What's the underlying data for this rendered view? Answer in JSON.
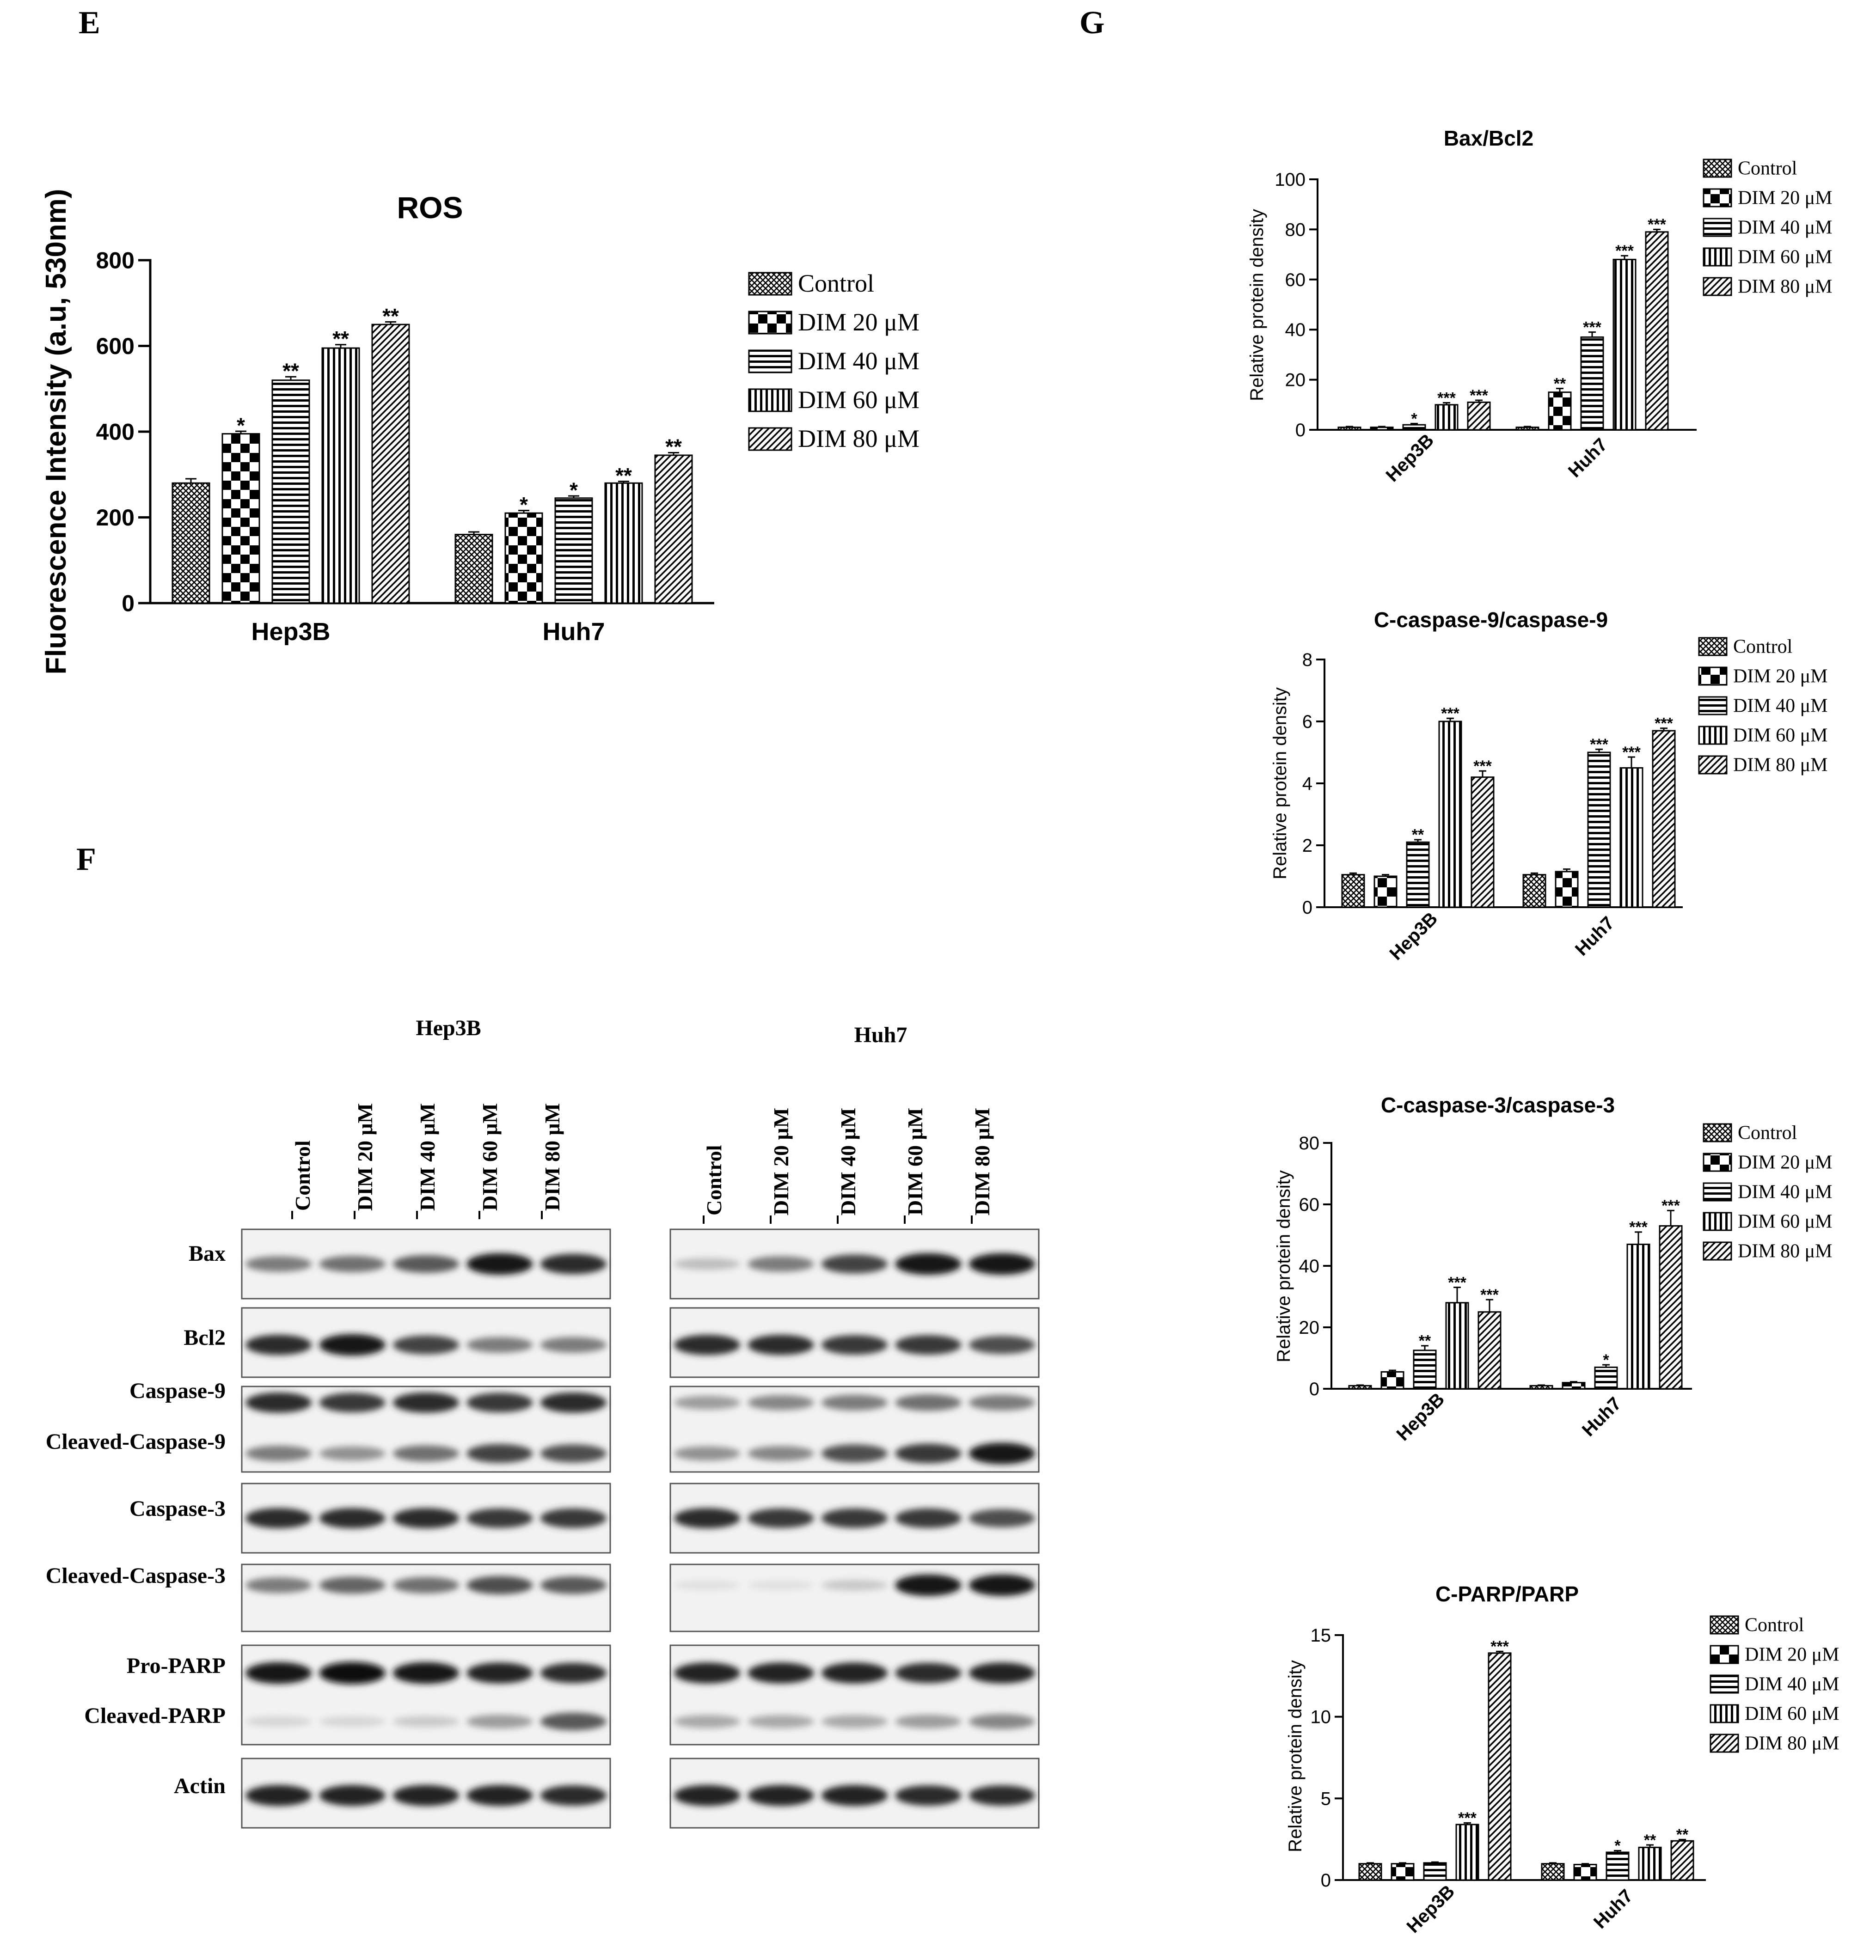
{
  "panels": {
    "e": "E",
    "f": "F",
    "g": "G"
  },
  "legend_labels": [
    "Control",
    "DIM 20 μM",
    "DIM 40 μM",
    "DIM 60 μM",
    "DIM 80 μM"
  ],
  "chart_data": [
    {
      "id": "ros",
      "type": "bar",
      "title": "ROS",
      "ylabel": "Fluorescence Intensity (a.u, 530nm)",
      "categories": [
        "Hep3B",
        "Huh7"
      ],
      "ylim": [
        0,
        800
      ],
      "yticks": [
        0,
        200,
        400,
        600,
        800
      ],
      "series": [
        {
          "name": "Control",
          "values": [
            280,
            160
          ],
          "errors": [
            10,
            6
          ],
          "stars": [
            "",
            ""
          ]
        },
        {
          "name": "DIM 20 μM",
          "values": [
            395,
            210
          ],
          "errors": [
            6,
            6
          ],
          "stars": [
            "*",
            "*"
          ]
        },
        {
          "name": "DIM 40 μM",
          "values": [
            520,
            245
          ],
          "errors": [
            8,
            5
          ],
          "stars": [
            "**",
            "*"
          ]
        },
        {
          "name": "DIM 60 μM",
          "values": [
            595,
            280
          ],
          "errors": [
            8,
            4
          ],
          "stars": [
            "**",
            "**"
          ]
        },
        {
          "name": "DIM 80 μM",
          "values": [
            650,
            345
          ],
          "errors": [
            6,
            6
          ],
          "stars": [
            "**",
            "**"
          ]
        }
      ]
    },
    {
      "id": "bax",
      "type": "bar",
      "title": "Bax/Bcl2",
      "ylabel": "Relative protein density",
      "categories": [
        "Hep3B",
        "Huh7"
      ],
      "ylim": [
        0,
        100
      ],
      "yticks": [
        0,
        20,
        40,
        60,
        80,
        100
      ],
      "series": [
        {
          "name": "Control",
          "values": [
            1,
            1
          ],
          "errors": [
            0.3,
            0.3
          ],
          "stars": [
            "",
            ""
          ]
        },
        {
          "name": "DIM 20 μM",
          "values": [
            1,
            15
          ],
          "errors": [
            0.3,
            1.5
          ],
          "stars": [
            "",
            "**"
          ]
        },
        {
          "name": "DIM 40 μM",
          "values": [
            2,
            37
          ],
          "errors": [
            0.5,
            2
          ],
          "stars": [
            "*",
            "***"
          ]
        },
        {
          "name": "DIM 60 μM",
          "values": [
            10,
            68
          ],
          "errors": [
            0.8,
            1.5
          ],
          "stars": [
            "***",
            "***"
          ]
        },
        {
          "name": "DIM 80 μM",
          "values": [
            11,
            79
          ],
          "errors": [
            0.8,
            1
          ],
          "stars": [
            "***",
            "***"
          ]
        }
      ]
    },
    {
      "id": "casp9",
      "type": "bar",
      "title": "C-caspase-9/caspase-9",
      "ylabel": "Relative protein density",
      "categories": [
        "Hep3B",
        "Huh7"
      ],
      "ylim": [
        0,
        8
      ],
      "yticks": [
        0,
        2,
        4,
        6,
        8
      ],
      "series": [
        {
          "name": "Control",
          "values": [
            1.05,
            1.05
          ],
          "errors": [
            0.05,
            0.05
          ],
          "stars": [
            "",
            ""
          ]
        },
        {
          "name": "DIM 20 μM",
          "values": [
            1.0,
            1.15
          ],
          "errors": [
            0.05,
            0.08
          ],
          "stars": [
            "",
            ""
          ]
        },
        {
          "name": "DIM 40 μM",
          "values": [
            2.1,
            5.0
          ],
          "errors": [
            0.08,
            0.1
          ],
          "stars": [
            "**",
            "***"
          ]
        },
        {
          "name": "DIM 60 μM",
          "values": [
            6.0,
            4.5
          ],
          "errors": [
            0.1,
            0.35
          ],
          "stars": [
            "***",
            "***"
          ]
        },
        {
          "name": "DIM 80 μM",
          "values": [
            4.2,
            5.7
          ],
          "errors": [
            0.2,
            0.08
          ],
          "stars": [
            "***",
            "***"
          ]
        }
      ]
    },
    {
      "id": "casp3",
      "type": "bar",
      "title": "C-caspase-3/caspase-3",
      "ylabel": "Relative protein density",
      "categories": [
        "Hep3B",
        "Huh7"
      ],
      "ylim": [
        0,
        80
      ],
      "yticks": [
        0,
        20,
        40,
        60,
        80
      ],
      "series": [
        {
          "name": "Control",
          "values": [
            1,
            1
          ],
          "errors": [
            0.2,
            0.2
          ],
          "stars": [
            "",
            ""
          ]
        },
        {
          "name": "DIM 20 μM",
          "values": [
            5.5,
            2
          ],
          "errors": [
            0.5,
            0.3
          ],
          "stars": [
            "",
            ""
          ]
        },
        {
          "name": "DIM 40 μM",
          "values": [
            12.5,
            7
          ],
          "errors": [
            1.5,
            0.8
          ],
          "stars": [
            "**",
            "*"
          ]
        },
        {
          "name": "DIM 60 μM",
          "values": [
            28,
            47
          ],
          "errors": [
            5,
            4
          ],
          "stars": [
            "***",
            "***"
          ]
        },
        {
          "name": "DIM 80 μM",
          "values": [
            25,
            53
          ],
          "errors": [
            4,
            5
          ],
          "stars": [
            "***",
            "***"
          ]
        }
      ]
    },
    {
      "id": "parp",
      "type": "bar",
      "title": "C-PARP/PARP",
      "ylabel": "Relative protein density",
      "categories": [
        "Hep3B",
        "Huh7"
      ],
      "ylim": [
        0,
        15
      ],
      "yticks": [
        0,
        5,
        10,
        15
      ],
      "series": [
        {
          "name": "Control",
          "values": [
            1,
            1
          ],
          "errors": [
            0.05,
            0.05
          ],
          "stars": [
            "",
            ""
          ]
        },
        {
          "name": "DIM 20 μM",
          "values": [
            1,
            0.95
          ],
          "errors": [
            0.05,
            0.05
          ],
          "stars": [
            "",
            ""
          ]
        },
        {
          "name": "DIM 40 μM",
          "values": [
            1.05,
            1.7
          ],
          "errors": [
            0.05,
            0.1
          ],
          "stars": [
            "",
            "*"
          ]
        },
        {
          "name": "DIM 60 μM",
          "values": [
            3.4,
            2.0
          ],
          "errors": [
            0.1,
            0.15
          ],
          "stars": [
            "***",
            "**"
          ]
        },
        {
          "name": "DIM 80 μM",
          "values": [
            13.9,
            2.4
          ],
          "errors": [
            0.1,
            0.08
          ],
          "stars": [
            "***",
            "**"
          ]
        }
      ]
    }
  ],
  "western": {
    "groups": [
      "Hep3B",
      "Huh7"
    ],
    "lanes": [
      "Control",
      "DIM 20 μM",
      "DIM 40 μM",
      "DIM 60 μM",
      "DIM 80 μM"
    ],
    "proteins": [
      "Bax",
      "Bcl2",
      "Caspase-9",
      "Cleaved-Caspase-9",
      "Caspase-3",
      "Cleaved-Caspase-3",
      "Pro-PARP",
      "Cleaved-PARP",
      "Actin"
    ],
    "band_intensity": {
      "Hep3B": [
        [
          0.5,
          0.55,
          0.65,
          0.95,
          0.85
        ],
        [
          0.85,
          0.95,
          0.75,
          0.5,
          0.5
        ],
        [
          0.85,
          0.8,
          0.85,
          0.8,
          0.85
        ],
        [
          0.5,
          0.4,
          0.55,
          0.75,
          0.7
        ],
        [
          0.85,
          0.85,
          0.85,
          0.8,
          0.8
        ],
        [
          0.5,
          0.6,
          0.55,
          0.7,
          0.65
        ],
        [
          0.95,
          1.0,
          0.95,
          0.9,
          0.85
        ],
        [
          0.1,
          0.1,
          0.15,
          0.35,
          0.65
        ],
        [
          0.9,
          0.9,
          0.9,
          0.9,
          0.85
        ]
      ],
      "Huh7": [
        [
          0.2,
          0.5,
          0.75,
          0.95,
          0.95
        ],
        [
          0.85,
          0.85,
          0.8,
          0.8,
          0.7
        ],
        [
          0.35,
          0.45,
          0.5,
          0.55,
          0.5
        ],
        [
          0.4,
          0.45,
          0.7,
          0.8,
          0.95
        ],
        [
          0.85,
          0.8,
          0.8,
          0.8,
          0.7
        ],
        [
          0.05,
          0.05,
          0.15,
          0.95,
          0.95
        ],
        [
          0.9,
          0.9,
          0.9,
          0.85,
          0.9
        ],
        [
          0.3,
          0.3,
          0.3,
          0.35,
          0.45
        ],
        [
          0.9,
          0.9,
          0.9,
          0.85,
          0.85
        ]
      ]
    }
  }
}
